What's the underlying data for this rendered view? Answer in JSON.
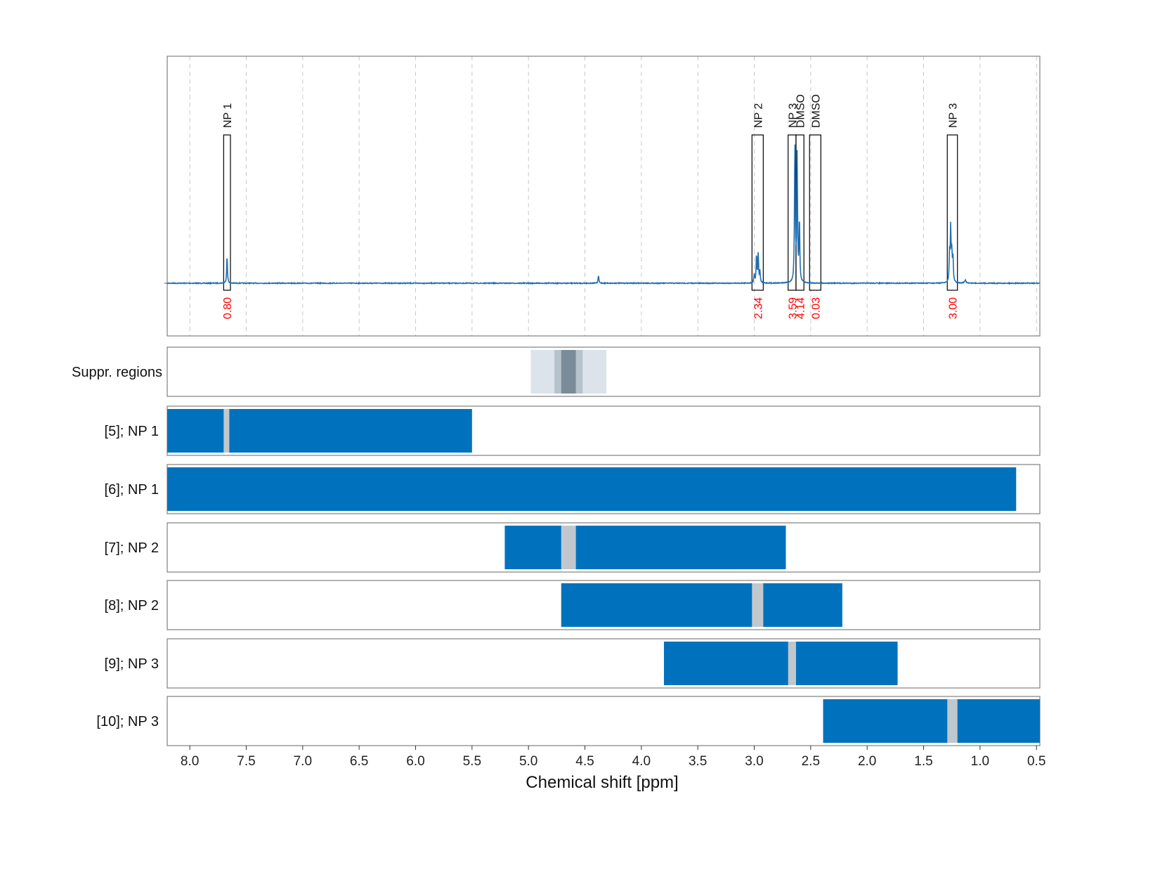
{
  "chart_data": {
    "type": "line",
    "xlabel": "Chemical shift [ppm]",
    "xlim": [
      8.2,
      0.47
    ],
    "x_ticks": [
      "8.0",
      "7.5",
      "7.0",
      "6.5",
      "6.0",
      "5.5",
      "5.0",
      "4.5",
      "4.0",
      "3.5",
      "3.0",
      "2.5",
      "2.0",
      "1.5",
      "1.0",
      "0.5"
    ],
    "x_tick_values": [
      8.0,
      7.5,
      7.0,
      6.5,
      6.0,
      5.5,
      5.0,
      4.5,
      4.0,
      3.5,
      3.0,
      2.5,
      2.0,
      1.5,
      1.0,
      0.5
    ],
    "grid": true,
    "spectrum": {
      "baseline": 0,
      "peaks": [
        {
          "ppm": 7.67,
          "height": 0.19,
          "width": 0.004
        },
        {
          "ppm": 4.38,
          "height": 0.055,
          "width": 0.004
        },
        {
          "ppm": 3.0,
          "height": 0.06,
          "width": 0.004
        },
        {
          "ppm": 2.98,
          "height": 0.2,
          "width": 0.004
        },
        {
          "ppm": 2.965,
          "height": 0.21,
          "width": 0.004
        },
        {
          "ppm": 2.95,
          "height": 0.08,
          "width": 0.004
        },
        {
          "ppm": 2.64,
          "height": 1.0,
          "width": 0.004
        },
        {
          "ppm": 2.62,
          "height": 0.9,
          "width": 0.004
        },
        {
          "ppm": 2.6,
          "height": 0.45,
          "width": 0.004
        },
        {
          "ppm": 1.27,
          "height": 0.2,
          "width": 0.004
        },
        {
          "ppm": 1.26,
          "height": 0.38,
          "width": 0.004
        },
        {
          "ppm": 1.25,
          "height": 0.2,
          "width": 0.004
        },
        {
          "ppm": 1.24,
          "height": 0.18,
          "width": 0.004
        },
        {
          "ppm": 1.13,
          "height": 0.02,
          "width": 0.008
        }
      ]
    },
    "annotated_peaks": [
      {
        "label": "NP 1",
        "ppm_from": 7.7,
        "ppm_to": 7.64,
        "integral": "0.80"
      },
      {
        "label": "NP 2",
        "ppm_from": 3.02,
        "ppm_to": 2.92,
        "integral": "2.34"
      },
      {
        "label": "NP 3",
        "ppm_from": 2.7,
        "ppm_to": 2.63,
        "integral": "3.59"
      },
      {
        "label": "DMSO",
        "ppm_from": 2.63,
        "ppm_to": 2.56,
        "integral": "4.14"
      },
      {
        "label": "DMSO",
        "ppm_from": 2.51,
        "ppm_to": 2.41,
        "integral": "0.03"
      },
      {
        "label": "NP 3",
        "ppm_from": 1.29,
        "ppm_to": 1.2,
        "integral": "3.00"
      }
    ],
    "suppression": {
      "label": "Suppr. regions",
      "regions": [
        {
          "from": 4.98,
          "to": 4.31,
          "shade": "#dce3ea"
        },
        {
          "from": 4.77,
          "to": 4.52,
          "shade": "#b7c3cc"
        },
        {
          "from": 4.71,
          "to": 4.58,
          "shade": "#7a8c99"
        }
      ]
    },
    "fit_rows": [
      {
        "label": "[5]; NP 1",
        "from": 8.2,
        "to": 5.5,
        "excluded": [
          7.7,
          7.65
        ]
      },
      {
        "label": "[6]; NP 1",
        "from": 8.2,
        "to": 0.68,
        "excluded": null
      },
      {
        "label": "[7]; NP 2",
        "from": 5.21,
        "to": 2.72,
        "excluded": [
          4.71,
          4.58
        ]
      },
      {
        "label": "[8]; NP 2",
        "from": 4.71,
        "to": 2.22,
        "excluded": [
          3.02,
          2.92
        ]
      },
      {
        "label": "[9]; NP 3",
        "from": 3.8,
        "to": 1.73,
        "excluded": [
          2.7,
          2.63
        ]
      },
      {
        "label": "[10]; NP 3",
        "from": 2.39,
        "to": 0.47,
        "excluded": [
          1.29,
          1.2
        ]
      }
    ],
    "colors": {
      "spectrum": "#1f6fb4",
      "bar": "#0072bd",
      "excluded": "#c0c8ce",
      "integral_text": "#ff0000",
      "grid": "#c8c8c8",
      "frame": "#808080"
    }
  }
}
